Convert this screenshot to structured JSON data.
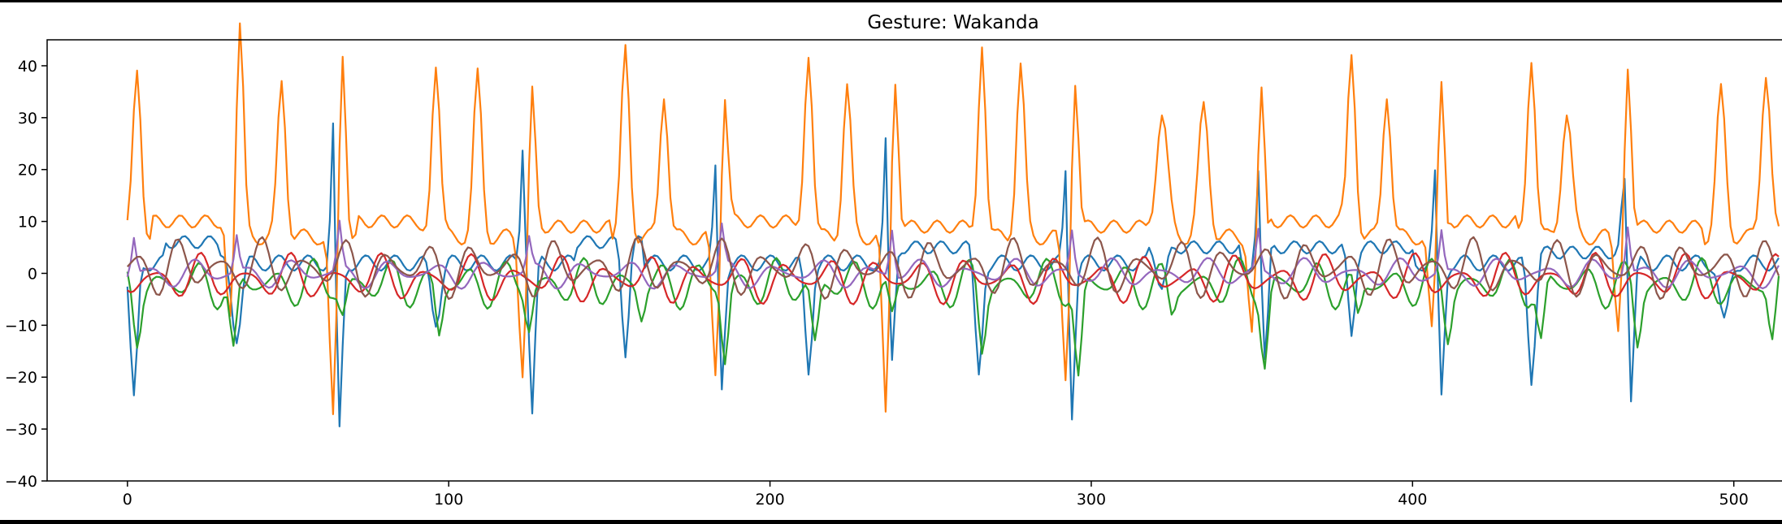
{
  "chart_data": {
    "type": "line",
    "title": "Gesture: Wakanda",
    "xlabel": "",
    "ylabel": "",
    "xlim": [
      -25,
      515
    ],
    "ylim": [
      -40,
      45
    ],
    "xticks": [
      0,
      100,
      200,
      300,
      400,
      500
    ],
    "yticks": [
      -40,
      -30,
      -20,
      -10,
      0,
      10,
      20,
      30,
      40
    ],
    "grid": false,
    "legend": "none",
    "x_max": 514,
    "series": [
      {
        "color": "#1f77b4",
        "baseline": 2,
        "values_note": "",
        "events": [
          {
            "x": 2,
            "v": -27,
            "w": 1.5
          },
          {
            "x": 34,
            "v": -14,
            "w": 2
          },
          {
            "x": 64,
            "v": 28,
            "w": 0.9
          },
          {
            "x": 66,
            "v": -33,
            "w": 1.2
          },
          {
            "x": 96,
            "v": -11,
            "w": 2
          },
          {
            "x": 123,
            "v": 23,
            "w": 0.9
          },
          {
            "x": 126,
            "v": -29,
            "w": 1.2
          },
          {
            "x": 155,
            "v": -21,
            "w": 1.5
          },
          {
            "x": 183,
            "v": 19,
            "w": 0.9
          },
          {
            "x": 185,
            "v": -24,
            "w": 1.2
          },
          {
            "x": 212,
            "v": -21,
            "w": 1.5
          },
          {
            "x": 236,
            "v": 24,
            "w": 0.9
          },
          {
            "x": 238,
            "v": -23,
            "w": 1.2
          },
          {
            "x": 265,
            "v": -22,
            "w": 1.5
          },
          {
            "x": 292,
            "v": 19,
            "w": 0.9
          },
          {
            "x": 294,
            "v": -29,
            "w": 1.2
          },
          {
            "x": 322,
            "v": -8,
            "w": 2
          },
          {
            "x": 352,
            "v": 18,
            "w": 0.9
          },
          {
            "x": 354,
            "v": -20,
            "w": 1.2
          },
          {
            "x": 381,
            "v": -17,
            "w": 1.5
          },
          {
            "x": 407,
            "v": 18,
            "w": 0.9
          },
          {
            "x": 409,
            "v": -26,
            "w": 1.2
          },
          {
            "x": 437,
            "v": -23,
            "w": 1.5
          },
          {
            "x": 466,
            "v": 15,
            "w": 1.2
          },
          {
            "x": 468,
            "v": -29,
            "w": 1.2
          },
          {
            "x": 497,
            "v": -12,
            "w": 2
          }
        ],
        "plateaus": [
          [
            12,
            28,
            6
          ],
          [
            140,
            160,
            6
          ],
          [
            238,
            262,
            5
          ],
          [
            318,
            346,
            5
          ],
          [
            356,
            400,
            5
          ],
          [
            440,
            470,
            4
          ]
        ]
      },
      {
        "color": "#ff7f0e",
        "baseline": 7,
        "events": [
          {
            "x": 3,
            "v": 32,
            "w": 1.8
          },
          {
            "x": 32,
            "v": -15,
            "w": 1.5
          },
          {
            "x": 35,
            "v": 41,
            "w": 1.6
          },
          {
            "x": 48,
            "v": 30,
            "w": 1.8
          },
          {
            "x": 64,
            "v": -36,
            "w": 1.4
          },
          {
            "x": 67,
            "v": 36,
            "w": 1.4
          },
          {
            "x": 96,
            "v": 34,
            "w": 1.8
          },
          {
            "x": 109,
            "v": 31,
            "w": 1.8
          },
          {
            "x": 123,
            "v": -26,
            "w": 1.4
          },
          {
            "x": 126,
            "v": 28,
            "w": 1.4
          },
          {
            "x": 155,
            "v": 36,
            "w": 1.8
          },
          {
            "x": 167,
            "v": 28,
            "w": 1.8
          },
          {
            "x": 183,
            "v": -27,
            "w": 1.4
          },
          {
            "x": 186,
            "v": 28,
            "w": 1.4
          },
          {
            "x": 212,
            "v": 36,
            "w": 1.8
          },
          {
            "x": 224,
            "v": 29,
            "w": 1.8
          },
          {
            "x": 236,
            "v": -35,
            "w": 1.3
          },
          {
            "x": 239,
            "v": 31,
            "w": 1.4
          },
          {
            "x": 266,
            "v": 38,
            "w": 1.6
          },
          {
            "x": 278,
            "v": 33,
            "w": 1.8
          },
          {
            "x": 292,
            "v": -27,
            "w": 1.4
          },
          {
            "x": 295,
            "v": 30,
            "w": 1.4
          },
          {
            "x": 322,
            "v": 24,
            "w": 2.5
          },
          {
            "x": 335,
            "v": 25,
            "w": 2.2
          },
          {
            "x": 350,
            "v": -19,
            "w": 1.4
          },
          {
            "x": 353,
            "v": 28,
            "w": 1.4
          },
          {
            "x": 381,
            "v": 35,
            "w": 1.8
          },
          {
            "x": 392,
            "v": 28,
            "w": 1.8
          },
          {
            "x": 406,
            "v": -19,
            "w": 1.4
          },
          {
            "x": 409,
            "v": 31,
            "w": 1.4
          },
          {
            "x": 437,
            "v": 35,
            "w": 1.8
          },
          {
            "x": 448,
            "v": 24,
            "w": 2.2
          },
          {
            "x": 464,
            "v": -17,
            "w": 1.4
          },
          {
            "x": 467,
            "v": 32,
            "w": 1.4
          },
          {
            "x": 496,
            "v": 28,
            "w": 2
          },
          {
            "x": 510,
            "v": 32,
            "w": 2
          }
        ],
        "plateaus": [
          [
            8,
            30,
            10
          ],
          [
            72,
            90,
            10
          ],
          [
            128,
            150,
            9
          ],
          [
            188,
            208,
            10
          ],
          [
            242,
            262,
            9
          ],
          [
            296,
            318,
            9
          ],
          [
            356,
            378,
            10
          ],
          [
            412,
            432,
            10
          ],
          [
            470,
            490,
            9
          ]
        ]
      },
      {
        "color": "#2ca02c",
        "baseline": -2,
        "events": [
          {
            "x": 3,
            "v": -9,
            "w": 1.5
          },
          {
            "x": 33,
            "v": -15,
            "w": 1.5
          },
          {
            "x": 67,
            "v": -6,
            "w": 1.5
          },
          {
            "x": 97,
            "v": -10,
            "w": 1.5
          },
          {
            "x": 125,
            "v": -8,
            "w": 1.5
          },
          {
            "x": 160,
            "v": -6,
            "w": 1.5
          },
          {
            "x": 186,
            "v": -15,
            "w": 1.5
          },
          {
            "x": 214,
            "v": -12,
            "w": 1.5
          },
          {
            "x": 238,
            "v": -8,
            "w": 1.5
          },
          {
            "x": 266,
            "v": -12,
            "w": 1.5
          },
          {
            "x": 296,
            "v": -19,
            "w": 1.5
          },
          {
            "x": 325,
            "v": -6,
            "w": 1.5
          },
          {
            "x": 354,
            "v": -15,
            "w": 1.5
          },
          {
            "x": 383,
            "v": -8,
            "w": 1.5
          },
          {
            "x": 411,
            "v": -9,
            "w": 1.5
          },
          {
            "x": 440,
            "v": -12,
            "w": 1.5
          },
          {
            "x": 470,
            "v": -11,
            "w": 1.5
          },
          {
            "x": 512,
            "v": -12,
            "w": 1.5
          }
        ],
        "osc": [
          5,
          12
        ]
      },
      {
        "color": "#d62728",
        "baseline": -1,
        "events": [],
        "osc": [
          5,
          14
        ]
      },
      {
        "color": "#9467bd",
        "baseline": 0,
        "events": [
          {
            "x": 2,
            "v": 7,
            "w": 1
          },
          {
            "x": 34,
            "v": 7,
            "w": 1
          },
          {
            "x": 66,
            "v": 9,
            "w": 1
          },
          {
            "x": 125,
            "v": 6,
            "w": 1
          },
          {
            "x": 185,
            "v": 8,
            "w": 1
          },
          {
            "x": 238,
            "v": 9,
            "w": 1
          },
          {
            "x": 294,
            "v": 8,
            "w": 1
          },
          {
            "x": 352,
            "v": 8,
            "w": 1
          },
          {
            "x": 409,
            "v": 8,
            "w": 1
          },
          {
            "x": 467,
            "v": 9,
            "w": 1
          }
        ],
        "osc": [
          3,
          15
        ]
      },
      {
        "color": "#8c564b",
        "baseline": 1,
        "events": [],
        "osc": [
          6,
          13
        ]
      }
    ]
  }
}
